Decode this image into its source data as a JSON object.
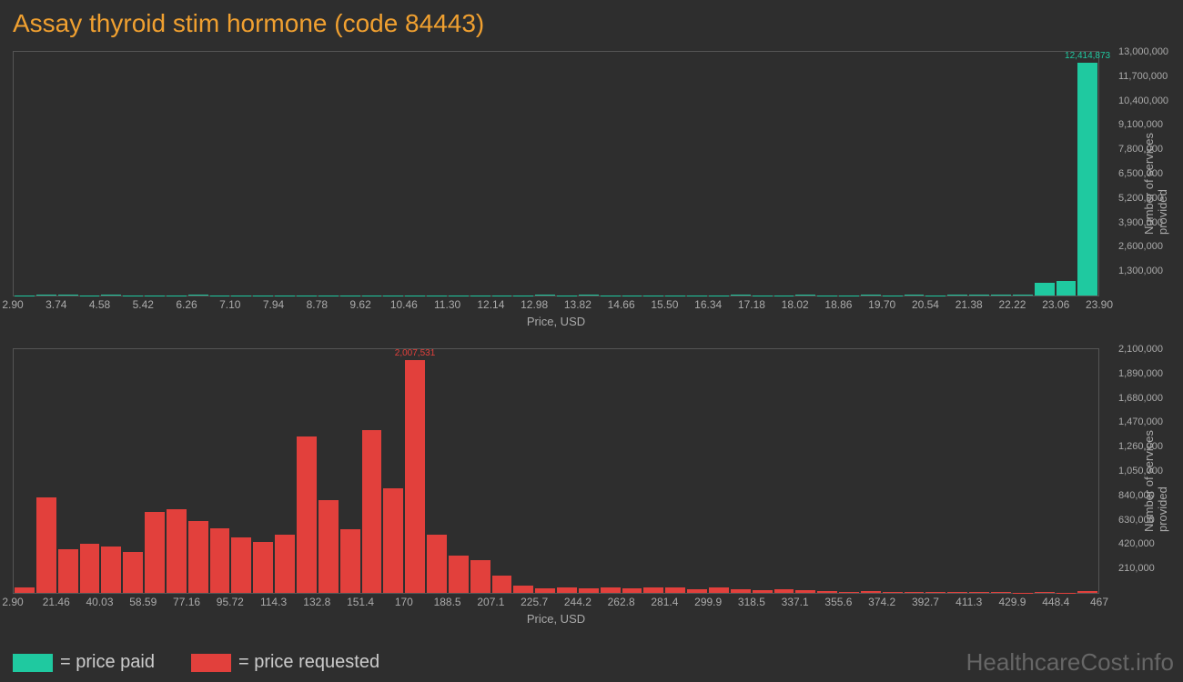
{
  "title": "Assay thyroid stim hormone (code 84443)",
  "colors": {
    "paid": "#1fc9a0",
    "requested": "#e2403c",
    "bg": "#2e2e2e",
    "border": "#555555",
    "text_muted": "#aaaaaa",
    "title": "#f0a030",
    "watermark": "#666666"
  },
  "chart_paid": {
    "type": "histogram",
    "x_label": "Price, USD",
    "y_label": "Number of services provided",
    "x_ticks": [
      "2.90",
      "3.74",
      "4.58",
      "5.42",
      "6.26",
      "7.10",
      "7.94",
      "8.78",
      "9.62",
      "10.46",
      "11.30",
      "12.14",
      "12.98",
      "13.82",
      "14.66",
      "15.50",
      "16.34",
      "17.18",
      "18.02",
      "18.86",
      "19.70",
      "20.54",
      "21.38",
      "22.22",
      "23.06",
      "23.90"
    ],
    "y_ticks": [
      "1,300,000",
      "2,600,000",
      "3,900,000",
      "5,200,000",
      "6,500,000",
      "7,800,000",
      "9,100,000",
      "10,400,000",
      "11,700,000",
      "13,000,000"
    ],
    "y_max": 13000000,
    "values": [
      20000,
      30000,
      30000,
      20000,
      30000,
      25000,
      20000,
      25000,
      30000,
      25000,
      20000,
      10000,
      10000,
      25000,
      20000,
      25000,
      15000,
      20000,
      15000,
      25000,
      20000,
      25000,
      20000,
      25000,
      30000,
      20000,
      30000,
      25000,
      20000,
      25000,
      15000,
      20000,
      25000,
      30000,
      20000,
      25000,
      30000,
      20000,
      25000,
      30000,
      25000,
      30000,
      25000,
      30000,
      40000,
      50000,
      60000,
      700000,
      800000,
      12414873
    ],
    "peak_label": "12,414,873",
    "peak_index": 49
  },
  "chart_requested": {
    "type": "histogram",
    "x_label": "Price, USD",
    "y_label": "Number of services provided",
    "x_ticks": [
      "2.90",
      "21.46",
      "40.03",
      "58.59",
      "77.16",
      "95.72",
      "114.3",
      "132.8",
      "151.4",
      "170",
      "188.5",
      "207.1",
      "225.7",
      "244.2",
      "262.8",
      "281.4",
      "299.9",
      "318.5",
      "337.1",
      "355.6",
      "374.2",
      "392.7",
      "411.3",
      "429.9",
      "448.4",
      "467"
    ],
    "y_ticks": [
      "210,000",
      "420,000",
      "630,000",
      "840,000",
      "1,050,000",
      "1,260,000",
      "1,470,000",
      "1,680,000",
      "1,890,000",
      "2,100,000"
    ],
    "y_max": 2100000,
    "values": [
      50000,
      820000,
      380000,
      420000,
      400000,
      350000,
      700000,
      720000,
      620000,
      560000,
      480000,
      440000,
      500000,
      1350000,
      800000,
      550000,
      1400000,
      900000,
      2007531,
      500000,
      320000,
      280000,
      150000,
      60000,
      40000,
      50000,
      40000,
      45000,
      40000,
      45000,
      50000,
      30000,
      45000,
      30000,
      25000,
      30000,
      20000,
      15000,
      10000,
      15000,
      8000,
      6000,
      8000,
      5000,
      6000,
      5000,
      4000,
      5000,
      4000,
      15000
    ],
    "peak_label": "2,007,531",
    "peak_index": 18
  },
  "legend": {
    "paid": "= price paid",
    "requested": "= price requested"
  },
  "watermark": "HealthcareCost.info"
}
